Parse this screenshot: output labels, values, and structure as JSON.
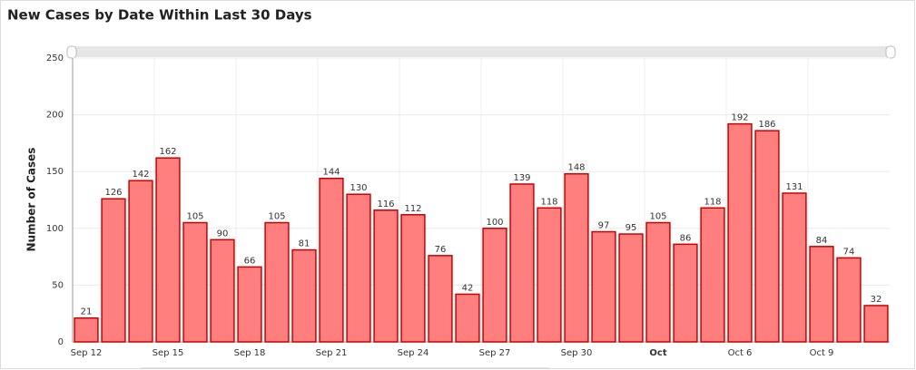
{
  "chart_data": {
    "type": "bar",
    "title": "New Cases by Date Within Last 30 Days",
    "y_label": "Number of Cases",
    "categories": [
      "Sep 12",
      null,
      null,
      "Sep 15",
      null,
      null,
      "Sep 18",
      null,
      null,
      "Sep 21",
      null,
      null,
      "Sep 24",
      null,
      null,
      "Sep 27",
      null,
      null,
      "Sep 30",
      null,
      null,
      "Oct",
      null,
      null,
      "Oct 6",
      null,
      null,
      "Oct 9",
      null,
      null
    ],
    "values": [
      21,
      126,
      142,
      162,
      105,
      90,
      66,
      105,
      81,
      144,
      130,
      116,
      112,
      76,
      42,
      100,
      139,
      118,
      148,
      97,
      95,
      105,
      86,
      118,
      192,
      186,
      131,
      84,
      74,
      32
    ],
    "color": "#ff7f7f",
    "edge_color": "#cc0000",
    "ylim": [
      0,
      250
    ],
    "yticks": [
      0,
      50,
      100,
      150,
      200,
      250
    ],
    "grid": true
  }
}
